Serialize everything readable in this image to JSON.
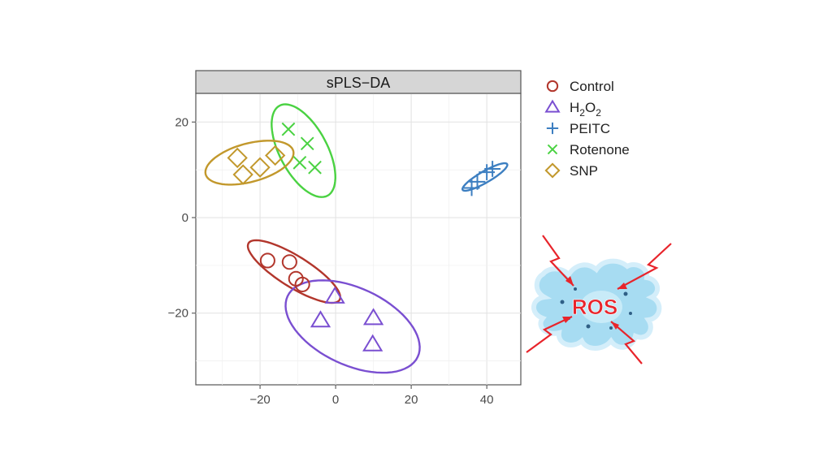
{
  "chart_data": {
    "type": "scatter",
    "title": "sPLS−DA",
    "xlabel": "",
    "ylabel": "",
    "xlim": [
      -37,
      49
    ],
    "ylim": [
      -35,
      26
    ],
    "x_ticks": [
      -20,
      0,
      20,
      40
    ],
    "y_ticks": [
      -20,
      0,
      20
    ],
    "x_tick_labels": [
      "−20",
      "0",
      "20",
      "40"
    ],
    "y_tick_labels": [
      "−20",
      "0",
      "20"
    ],
    "grid": true,
    "legend_position": "right",
    "series": [
      {
        "name": "Control",
        "subscript": "",
        "color": "#b2362c",
        "marker": "circle",
        "points": [
          [
            -18,
            -9
          ],
          [
            -12.2,
            -9.3
          ],
          [
            -10.5,
            -12.8
          ],
          [
            -8.8,
            -14
          ]
        ],
        "ellipse": {
          "center": [
            -11,
            -11.3
          ],
          "rx_deg": 11,
          "angle": -32,
          "semi_major": 14.2,
          "semi_minor": 4.1
        }
      },
      {
        "name": "H",
        "subscript": "2",
        "suffix": "O",
        "suffix_subscript": "2",
        "color": "#7a4fd1",
        "marker": "triangle",
        "points": [
          [
            -0.2,
            -16.5
          ],
          [
            -4,
            -21.5
          ],
          [
            10,
            -21
          ],
          [
            9.8,
            -26.5
          ]
        ],
        "ellipse": {
          "center": [
            4.5,
            -22.8
          ],
          "angle": -25,
          "semi_major": 19,
          "semi_minor": 10.2
        }
      },
      {
        "name": "PEITC",
        "subscript": "",
        "color": "#3d7fc1",
        "marker": "plus",
        "points": [
          [
            36,
            6.2
          ],
          [
            37.5,
            7.5
          ],
          [
            40,
            9.5
          ],
          [
            41.5,
            10.2
          ]
        ],
        "ellipse": {
          "center": [
            39.5,
            8.5
          ],
          "angle": 30,
          "semi_major": 6.8,
          "semi_minor": 1.5
        }
      },
      {
        "name": "Rotenone",
        "subscript": "",
        "color": "#4ad242",
        "marker": "x",
        "points": [
          [
            -12.5,
            18.5
          ],
          [
            -7.5,
            15.5
          ],
          [
            -9.5,
            11.5
          ],
          [
            -5.5,
            10.5
          ]
        ],
        "ellipse": {
          "center": [
            -8.5,
            14
          ],
          "angle": -62,
          "semi_major": 13.5,
          "semi_minor": 6.3
        }
      },
      {
        "name": "SNP",
        "subscript": "",
        "color": "#c2982c",
        "marker": "diamond",
        "points": [
          [
            -26,
            12.5
          ],
          [
            -24.5,
            9
          ],
          [
            -20,
            10.5
          ],
          [
            -16,
            13
          ]
        ],
        "ellipse": {
          "center": [
            -22.8,
            11.5
          ],
          "angle": 15,
          "semi_major": 12,
          "semi_minor": 5.1
        }
      }
    ]
  },
  "illustration": {
    "label": "ROS",
    "label_color": "#e8242b",
    "cell_color": "#9fd8f0",
    "arrow_color": "#e8242b"
  }
}
